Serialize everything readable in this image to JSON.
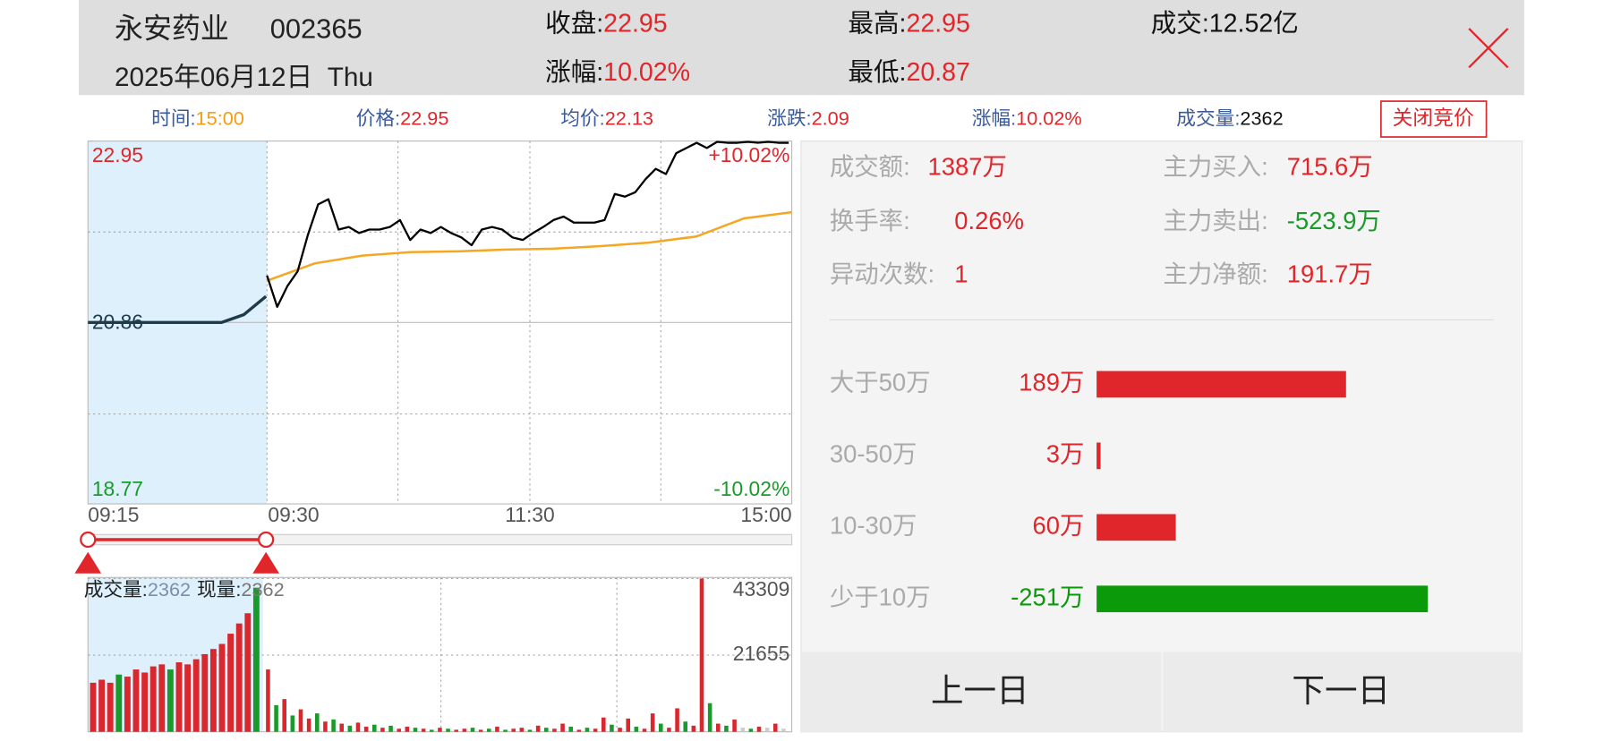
{
  "header": {
    "name": "永安药业",
    "code": "002365",
    "date": "2025年06月12日  Thu",
    "close_label": "收盘:",
    "close": "22.95",
    "change_label": "涨幅:",
    "change": "10.02%",
    "high_label": "最高:",
    "high": "22.95",
    "low_label": "最低:",
    "low": "20.87",
    "turnover_label": "成交:",
    "turnover": "12.52亿"
  },
  "info_bar": [
    {
      "label": "时间:",
      "value": "15:00",
      "color": "#f39c12"
    },
    {
      "label": "价格:",
      "value": "22.95",
      "color": "#e0262b"
    },
    {
      "label": "均价:",
      "value": "22.13",
      "color": "#e0262b"
    },
    {
      "label": "涨跌:",
      "value": "2.09",
      "color": "#e0262b"
    },
    {
      "label": "涨幅:",
      "value": "10.02%",
      "color": "#e0262b"
    },
    {
      "label": "成交量:",
      "value": "2362",
      "color": "#111111"
    }
  ],
  "auction_button": "关闭竞价",
  "price_chart": {
    "type": "line",
    "ylim": [
      18.77,
      22.95
    ],
    "yticks": [
      18.77,
      20.86,
      22.95
    ],
    "ytick_colors": [
      "#1a9a2a",
      "#1f3a48",
      "#e0262b"
    ],
    "pct_labels": [
      "+10.02%",
      "-10.02%"
    ],
    "xticks": [
      "09:15",
      "09:30",
      "11:30",
      "15:00"
    ],
    "auction": [
      20.86,
      20.86,
      20.86,
      20.86,
      20.86,
      20.86,
      20.86,
      20.95,
      21.16
    ],
    "auction_color": "#1f3a48",
    "price": [
      21.4,
      21.04,
      21.28,
      21.45,
      21.87,
      22.22,
      22.28,
      21.93,
      21.96,
      21.89,
      21.93,
      21.93,
      21.96,
      22.04,
      21.81,
      21.93,
      21.89,
      21.96,
      21.89,
      21.84,
      21.75,
      21.93,
      21.96,
      21.93,
      21.84,
      21.81,
      21.89,
      21.96,
      22.04,
      22.08,
      22.01,
      22.01,
      22.01,
      22.04,
      22.34,
      22.31,
      22.36,
      22.51,
      22.63,
      22.57,
      22.81,
      22.87,
      22.93,
      22.87,
      22.94,
      22.93,
      22.93,
      22.94,
      22.93,
      22.94,
      22.93,
      22.93
    ],
    "price_color": "#000000",
    "average": [
      21.34,
      21.54,
      21.63,
      21.67,
      21.68,
      21.7,
      21.71,
      21.74,
      21.78,
      21.85,
      22.06,
      22.13
    ],
    "average_color": "#f5a623"
  },
  "volume_chart": {
    "type": "bar",
    "volume_label": "成交量:",
    "volume": "2362",
    "current_label": "现量:",
    "current": "2362",
    "ylim": [
      0,
      43309
    ],
    "yticks": [
      21655,
      43309
    ],
    "auction_values": [
      13860,
      14720,
      13860,
      16170,
      15590,
      17610,
      16750,
      18480,
      19050,
      17610,
      19630,
      19050,
      20500,
      21940,
      23390,
      24830,
      27720,
      30600,
      33490,
      40710
    ],
    "auction_colors": [
      "#d9272e",
      "#d9272e",
      "#d9272e",
      "#1a9a2a",
      "#d9272e",
      "#d9272e",
      "#d9272e",
      "#d9272e",
      "#d9272e",
      "#1a9a2a",
      "#d9272e",
      "#d9272e",
      "#d9272e",
      "#d9272e",
      "#d9272e",
      "#d9272e",
      "#d9272e",
      "#d9272e",
      "#d9272e",
      "#1a9a2a"
    ],
    "values": [
      17610,
      7510,
      9240,
      4620,
      6350,
      3750,
      5200,
      2890,
      3460,
      2310,
      1730,
      2600,
      1440,
      2020,
      1150,
      1730,
      870,
      1440,
      1150,
      870,
      580,
      1150,
      870,
      580,
      870,
      1150,
      580,
      870,
      1440,
      580,
      870,
      1150,
      580,
      1730,
      1150,
      870,
      2310,
      1440,
      580,
      1150,
      870,
      4040,
      2020,
      1150,
      3750,
      1440,
      870,
      5200,
      2310,
      1150,
      6640,
      2890,
      1730,
      43309,
      8080,
      2310,
      1730,
      3460,
      1150,
      870,
      1440,
      1150,
      2310,
      870
    ],
    "colors": [
      "#d9272e",
      "#1a9a2a",
      "#d9272e",
      "#1a9a2a",
      "#d9272e",
      "#d9272e",
      "#1a9a2a",
      "#d9272e",
      "#1a9a2a",
      "#d9272e",
      "#1a9a2a",
      "#d9272e",
      "#d9272e",
      "#1a9a2a",
      "#d9272e",
      "#1a9a2a",
      "#d9272e",
      "#d9272e",
      "#1a9a2a",
      "#d9272e",
      "#1a9a2a",
      "#d9272e",
      "#1a9a2a",
      "#d9272e",
      "#d9272e",
      "#1a9a2a",
      "#d9272e",
      "#1a9a2a",
      "#d9272e",
      "#1a9a2a",
      "#d9272e",
      "#d9272e",
      "#1a9a2a",
      "#d9272e",
      "#1a9a2a",
      "#d9272e",
      "#d9272e",
      "#1a9a2a",
      "#d9272e",
      "#1a9a2a",
      "#d9272e",
      "#d9272e",
      "#1a9a2a",
      "#d9272e",
      "#d9272e",
      "#1a9a2a",
      "#d9272e",
      "#d9272e",
      "#1a9a2a",
      "#d9272e",
      "#d9272e",
      "#1a9a2a",
      "#d9272e",
      "#d9272e",
      "#1a9a2a",
      "#d9272e",
      "#1a9a2a",
      "#d9272e",
      "#cccccc",
      "#1a9a2a",
      "#d9272e",
      "#cccccc",
      "#d9272e",
      "#cccccc"
    ]
  },
  "stats": [
    {
      "label": "成交额:",
      "value": "1387万",
      "color": "#e0262b"
    },
    {
      "label": "换手率:",
      "value": "0.26%",
      "color": "#e0262b"
    },
    {
      "label": "异动次数:",
      "value": "1",
      "color": "#e0262b"
    },
    {
      "label": "主力买入:",
      "value": "715.6万",
      "color": "#e0262b"
    },
    {
      "label": "主力卖出:",
      "value": "-523.9万",
      "color": "#1a9a2a"
    },
    {
      "label": "主力净额:",
      "value": "191.7万",
      "color": "#e0262b"
    }
  ],
  "flow": {
    "rows": [
      {
        "label": "大于50万",
        "value": 189,
        "value_label": "189万",
        "color": "#e0262b"
      },
      {
        "label": "30-50万",
        "value": 3,
        "value_label": "3万",
        "color": "#e0262b"
      },
      {
        "label": "10-30万",
        "value": 60,
        "value_label": "60万",
        "color": "#e0262b"
      },
      {
        "label": "少于10万",
        "value": -251,
        "value_label": "-251万",
        "color": "#0a9a0a"
      }
    ]
  },
  "buttons": [
    "上一日",
    "下一日"
  ]
}
